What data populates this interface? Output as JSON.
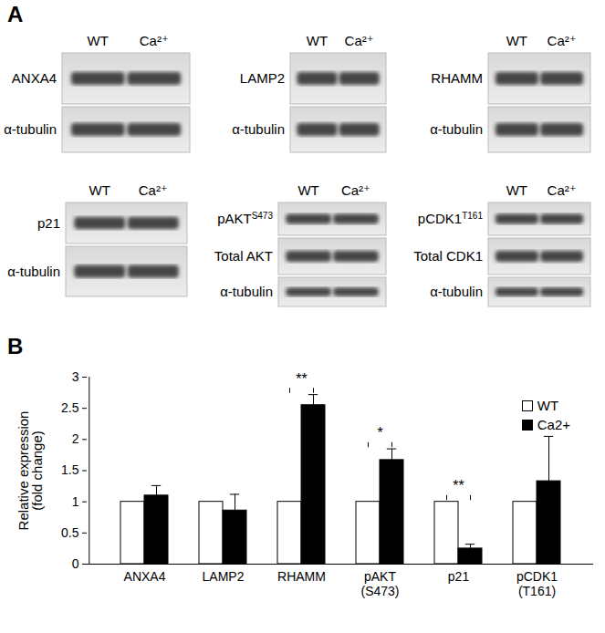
{
  "panel_a": {
    "label": "A",
    "lanes": [
      "WT",
      "Ca²⁺"
    ],
    "blots": [
      {
        "rows": [
          {
            "label": "ANXA4"
          },
          {
            "label": "α-tubulin"
          }
        ]
      },
      {
        "rows": [
          {
            "label": "LAMP2"
          },
          {
            "label": "α-tubulin"
          }
        ]
      },
      {
        "rows": [
          {
            "label": "RHAMM"
          },
          {
            "label": "α-tubulin"
          }
        ]
      },
      {
        "rows": [
          {
            "label": "p21"
          },
          {
            "label": "α-tubulin"
          }
        ]
      },
      {
        "rows": [
          {
            "label": "pAKT",
            "sup": "S473"
          },
          {
            "label": "Total AKT"
          },
          {
            "label": "α-tubulin"
          }
        ]
      },
      {
        "rows": [
          {
            "label": "pCDK1",
            "sup": "T161"
          },
          {
            "label": "Total CDK1"
          },
          {
            "label": "α-tubulin"
          }
        ]
      }
    ]
  },
  "panel_b": {
    "label": "B"
  },
  "chart_data": {
    "type": "bar",
    "categories": [
      "ANXA4",
      "LAMP2",
      "RHAMM",
      "pAKT\n(S473)",
      "p21",
      "pCDK1\n(T161)"
    ],
    "series": [
      {
        "name": "WT",
        "color": "#ffffff",
        "values": [
          1,
          1,
          1,
          1,
          1,
          1
        ]
      },
      {
        "name": "Ca2+",
        "color": "#000000",
        "values": [
          1.1,
          0.86,
          2.55,
          1.67,
          0.25,
          1.33
        ],
        "errors": [
          0.16,
          0.26,
          0.17,
          0.18,
          0.07,
          0.72
        ]
      }
    ],
    "y_label": "Relative expression\n(fold change)",
    "ylim": [
      0,
      3
    ],
    "yticks": [
      0,
      0.5,
      1,
      1.5,
      2,
      2.5,
      3
    ],
    "grid": false,
    "legend": "top-right",
    "annotations": [
      {
        "category": "RHAMM",
        "text": "**"
      },
      {
        "category": "pAKT\n(S473)",
        "text": "*"
      },
      {
        "category": "p21",
        "text": "**"
      }
    ]
  }
}
